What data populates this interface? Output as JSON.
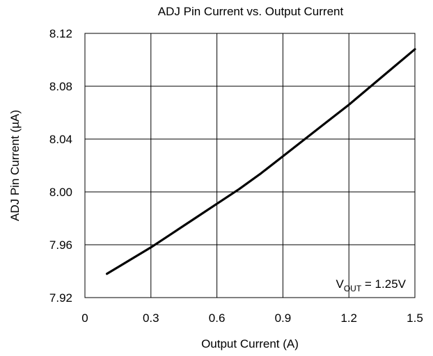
{
  "chart_data": {
    "type": "line",
    "title": "ADJ Pin Current vs. Output Current",
    "xlabel": "Output Current (A)",
    "ylabel": "ADJ Pin Current (µA)",
    "xlim": [
      0,
      1.5
    ],
    "ylim": [
      7.92,
      8.12
    ],
    "xticks": [
      "0",
      "0.3",
      "0.6",
      "0.9",
      "1.2",
      "1.5"
    ],
    "yticks": [
      "7.92",
      "7.96",
      "8.00",
      "8.04",
      "8.08",
      "8.12"
    ],
    "grid": true,
    "annotation": {
      "prefix": "V",
      "subscript": "OUT",
      "suffix": " = 1.25V"
    },
    "series": [
      {
        "x": [
          0.1,
          0.2,
          0.3,
          0.4,
          0.5,
          0.6,
          0.7,
          0.8,
          0.9,
          1.0,
          1.1,
          1.2,
          1.3,
          1.4,
          1.5
        ],
        "y": [
          7.938,
          7.948,
          7.958,
          7.969,
          7.98,
          7.991,
          8.002,
          8.014,
          8.027,
          8.04,
          8.053,
          8.066,
          8.08,
          8.094,
          8.108
        ],
        "color": "#000000"
      }
    ]
  }
}
